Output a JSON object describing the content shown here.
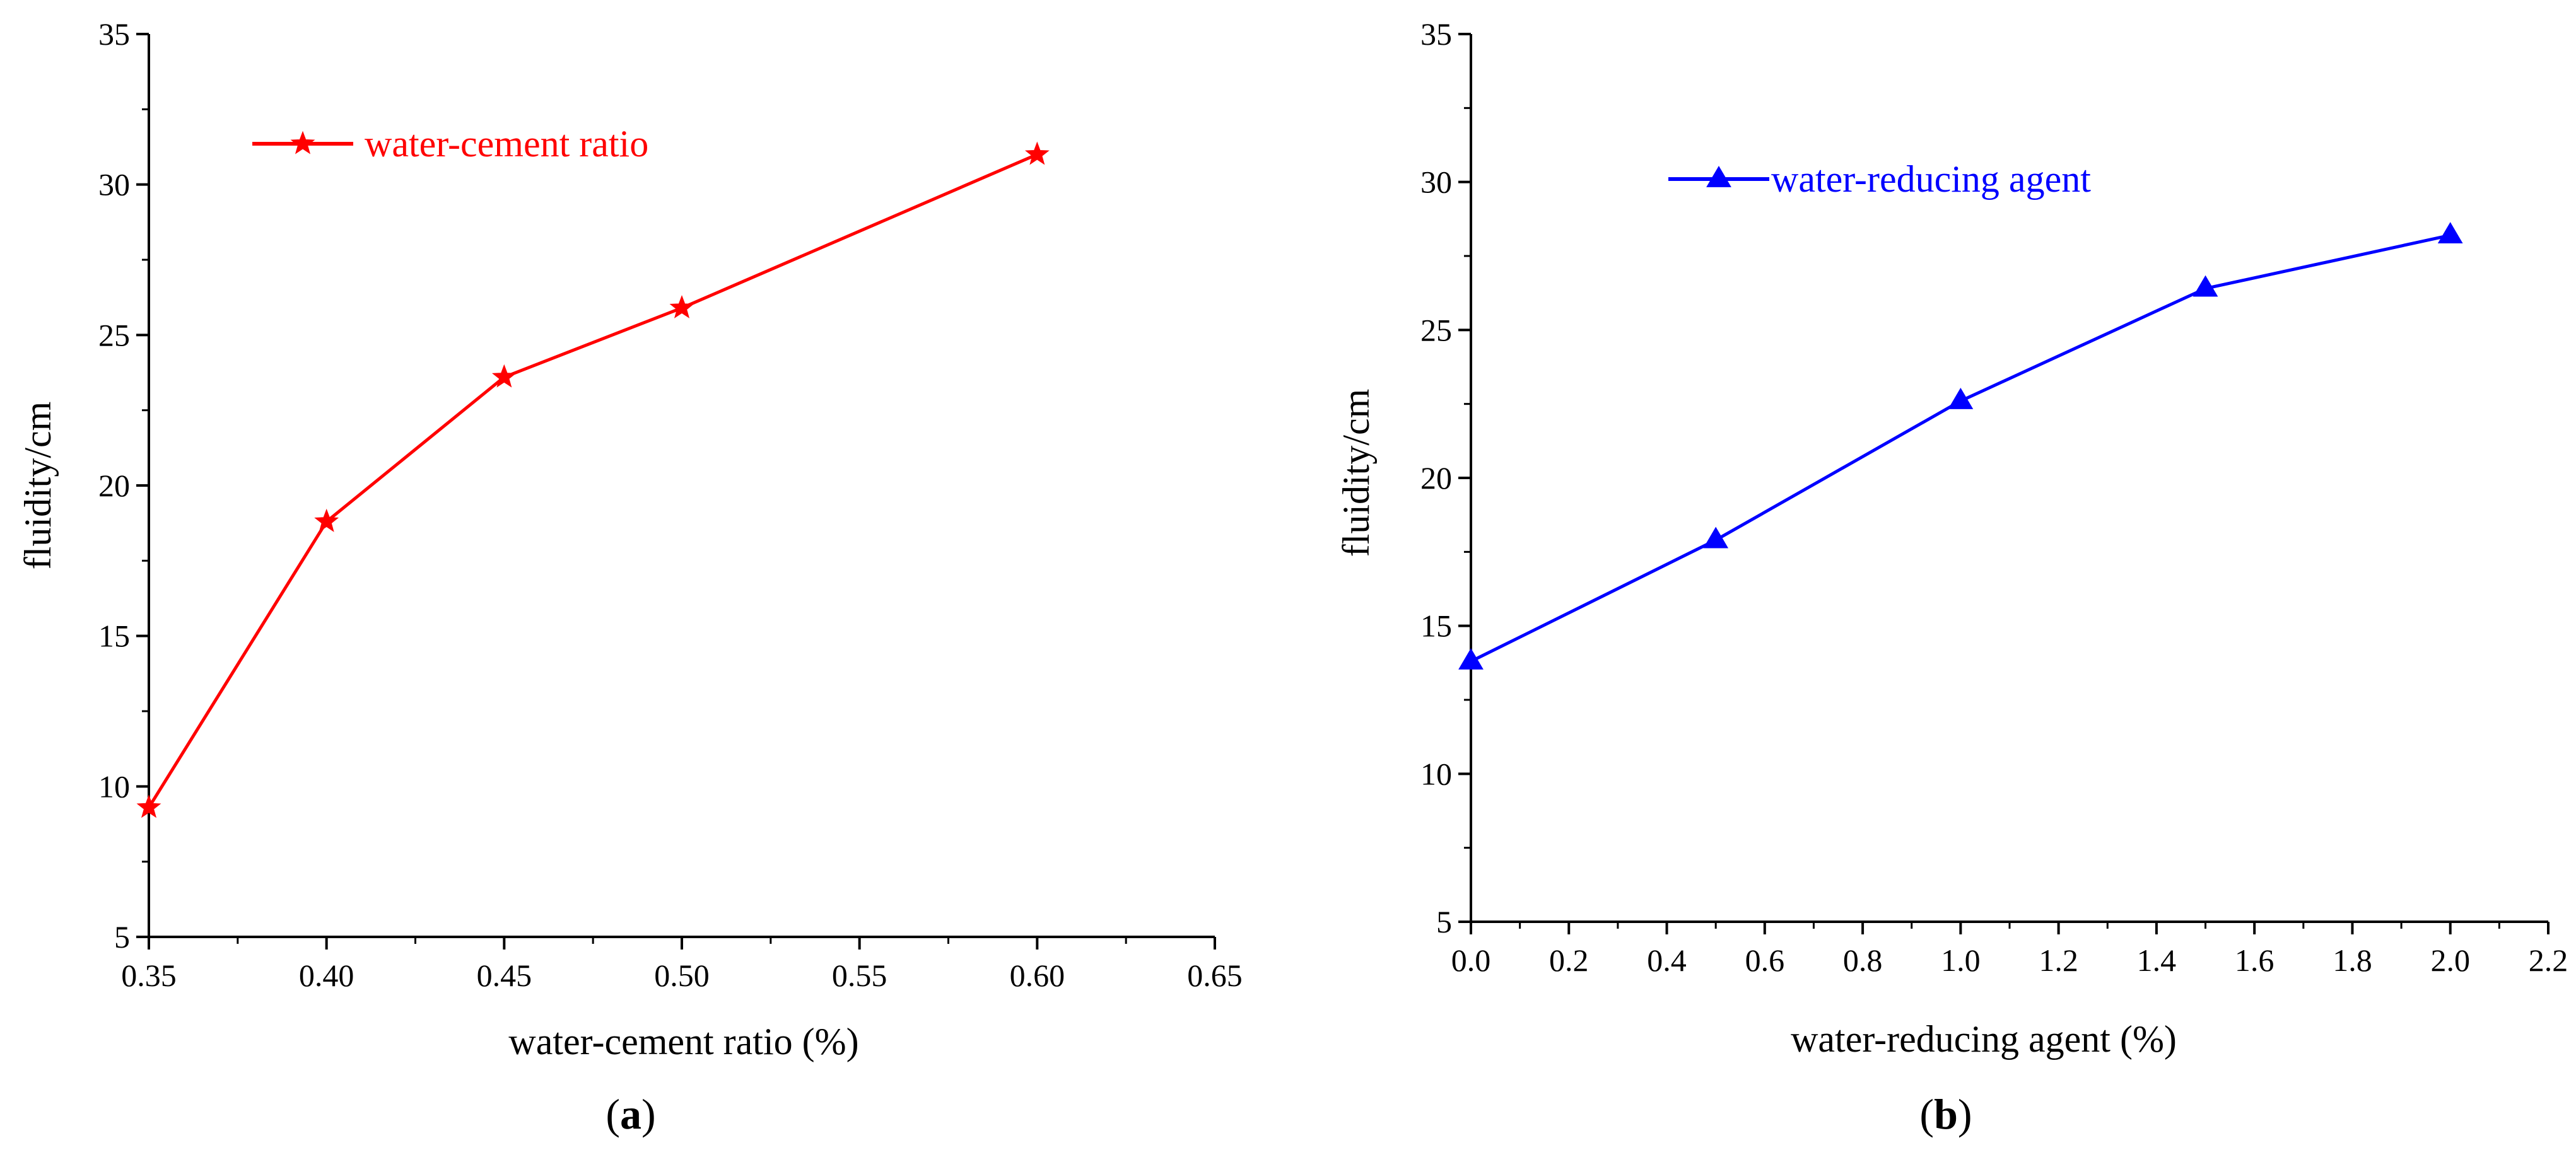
{
  "chart_data": [
    {
      "type": "line",
      "panel_label": "(a)",
      "panel_letter": "a",
      "xlabel": "water-cement ratio (%)",
      "ylabel": "fluidity/cm",
      "xlim": [
        0.35,
        0.65
      ],
      "ylim": [
        5,
        35
      ],
      "xticks": [
        "0.35",
        "0.40",
        "0.45",
        "0.50",
        "0.55",
        "0.60",
        "0.65"
      ],
      "yticks": [
        "5",
        "10",
        "15",
        "20",
        "25",
        "30",
        "35"
      ],
      "legend_position": "top-left",
      "marker": "star",
      "color": "#ff0000",
      "series": [
        {
          "name": "water-cement ratio",
          "x": [
            0.35,
            0.4,
            0.45,
            0.5,
            0.6
          ],
          "y": [
            9.3,
            18.8,
            23.6,
            25.9,
            31.0
          ]
        }
      ]
    },
    {
      "type": "line",
      "panel_label": "(b)",
      "panel_letter": "b",
      "xlabel": "water-reducing agent (%)",
      "ylabel": "fluidity/cm",
      "xlim": [
        0.0,
        2.2
      ],
      "ylim": [
        5,
        35
      ],
      "xticks": [
        "0.0",
        "0.2",
        "0.4",
        "0.6",
        "0.8",
        "1.0",
        "1.2",
        "1.4",
        "1.6",
        "1.8",
        "2.0",
        "2.2"
      ],
      "yticks": [
        "5",
        "10",
        "15",
        "20",
        "25",
        "30",
        "35"
      ],
      "legend_position": "top-left",
      "marker": "triangle",
      "color": "#0000ff",
      "series": [
        {
          "name": "water-reducing agent",
          "x": [
            0.0,
            0.5,
            1.0,
            1.5,
            2.0
          ],
          "y": [
            13.8,
            17.9,
            22.6,
            26.4,
            28.2
          ]
        }
      ]
    }
  ]
}
